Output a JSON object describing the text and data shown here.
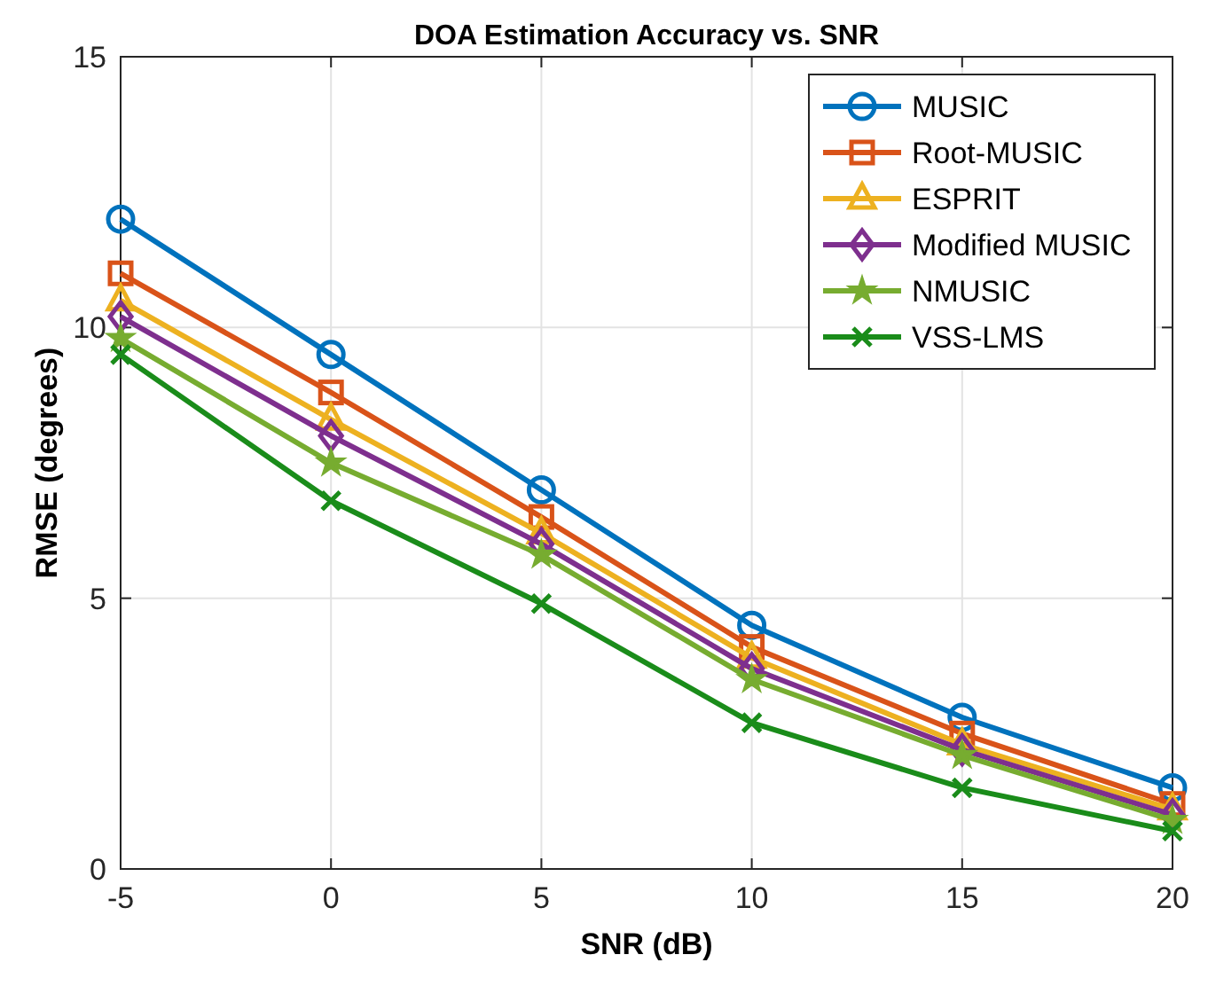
{
  "chart_data": {
    "type": "line",
    "title": "DOA Estimation Accuracy vs. SNR",
    "xlabel": "SNR (dB)",
    "ylabel": "RMSE (degrees)",
    "x": [
      -5,
      0,
      5,
      10,
      15,
      20
    ],
    "xlim": [
      -5,
      20
    ],
    "xticks": [
      -5,
      0,
      5,
      10,
      15,
      20
    ],
    "ylim": [
      0,
      15
    ],
    "yticks": [
      0,
      5,
      10,
      15
    ],
    "grid": true,
    "legend": "top right",
    "line_style": "solid",
    "series": [
      {
        "name": "MUSIC",
        "color": "#0072bd",
        "marker": "circle",
        "values": [
          12,
          9.5,
          7,
          4.5,
          2.8,
          1.5
        ]
      },
      {
        "name": "Root-MUSIC",
        "color": "#d95319",
        "marker": "square",
        "values": [
          11,
          8.8,
          6.5,
          4.1,
          2.5,
          1.2
        ]
      },
      {
        "name": "ESPRIT",
        "color": "#edb120",
        "marker": "triangle",
        "values": [
          10.5,
          8.3,
          6.2,
          3.9,
          2.3,
          1.1
        ]
      },
      {
        "name": "Modified MUSIC",
        "color": "#7e2f8e",
        "marker": "diamond",
        "values": [
          10.2,
          8,
          6,
          3.7,
          2.2,
          1.0
        ]
      },
      {
        "name": "NMUSIC",
        "color": "#77ac30",
        "marker": "star",
        "values": [
          9.8,
          7.5,
          5.8,
          3.5,
          2.1,
          0.9
        ]
      },
      {
        "name": "VSS-LMS",
        "color": "#1a8c1a",
        "marker": "cross",
        "values": [
          9.5,
          6.8,
          4.9,
          2.7,
          1.5,
          0.7
        ]
      }
    ]
  }
}
